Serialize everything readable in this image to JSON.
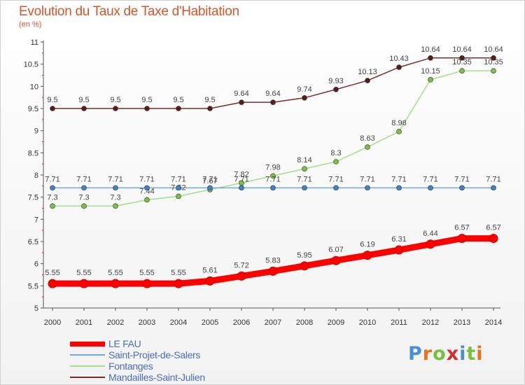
{
  "title": "Evolution du Taux de Taxe d'Habitation",
  "subtitle": "(en %)",
  "logo": {
    "text": "Proxiti",
    "letters": [
      "P",
      "r",
      "o",
      "x",
      "i",
      "t",
      "i"
    ]
  },
  "chart_data": {
    "type": "line",
    "x": [
      "2000",
      "2001",
      "2002",
      "2003",
      "2004",
      "2005",
      "2006",
      "2007",
      "2008",
      "2009",
      "2010",
      "2011",
      "2012",
      "2013",
      "2014"
    ],
    "ylim": [
      5,
      11
    ],
    "yticks": [
      "5",
      "5.5",
      "6",
      "6.5",
      "7",
      "7.5",
      "8",
      "8.5",
      "9",
      "9.5",
      "10",
      "10.5",
      "11"
    ],
    "ytick_values": [
      5,
      5.5,
      6,
      6.5,
      7,
      7.5,
      8,
      8.5,
      9,
      9.5,
      10,
      10.5,
      11
    ],
    "grid": false,
    "legend_position": "bottom-left",
    "series": [
      {
        "name": "LE FAU",
        "color": "#ff0000",
        "marker_color": "#ff0000",
        "values": [
          5.55,
          5.55,
          5.55,
          5.55,
          5.55,
          5.61,
          5.72,
          5.83,
          5.95,
          6.07,
          6.19,
          6.31,
          6.44,
          6.57,
          6.57
        ],
        "labels": [
          "5.55",
          "5.55",
          "5.55",
          "5.55",
          "5.55",
          "5.61",
          "5.72",
          "5.83",
          "5.95",
          "6.07",
          "6.19",
          "6.31",
          "6.44",
          "6.57",
          "6.57"
        ]
      },
      {
        "name": "Saint-Projet-de-Salers",
        "color": "#6fa8dc",
        "marker_color": "#3d85c6",
        "values": [
          7.71,
          7.71,
          7.71,
          7.71,
          7.71,
          7.71,
          7.71,
          7.71,
          7.71,
          7.71,
          7.71,
          7.71,
          7.71,
          7.71,
          7.71
        ],
        "labels": [
          "7.71",
          "7.71",
          "7.71",
          "7.71",
          "7.71",
          "7.71",
          "7.71",
          "7.71",
          "7.71",
          "7.71",
          "7.71",
          "7.71",
          "7.71",
          "7.71",
          "7.71"
        ]
      },
      {
        "name": "Fontanges",
        "color": "#a3e08a",
        "marker_color": "#7bc043",
        "values": [
          7.3,
          7.3,
          7.3,
          7.44,
          7.52,
          7.67,
          7.82,
          7.98,
          8.14,
          8.3,
          8.63,
          8.98,
          10.15,
          10.35,
          10.35
        ],
        "labels": [
          "7.3",
          "7.3",
          "7.3",
          "7.44",
          "7.52",
          "7.67",
          "7.82",
          "7.98",
          "8.14",
          "8.3",
          "8.63",
          "8.98",
          "10.15",
          "10.35",
          "10.35"
        ]
      },
      {
        "name": "Mandailles-Saint-Julien",
        "color": "#7b2c2c",
        "marker_color": "#5c1a1a",
        "values": [
          9.5,
          9.5,
          9.5,
          9.5,
          9.5,
          9.5,
          9.64,
          9.64,
          9.74,
          9.93,
          10.13,
          10.43,
          10.64,
          10.64,
          10.64
        ],
        "labels": [
          "9.5",
          "9.5",
          "9.5",
          "9.5",
          "9.5",
          "9.5",
          "9.64",
          "9.64",
          "9.74",
          "9.93",
          "10.13",
          "10.43",
          "10.64",
          "10.64",
          "10.64"
        ]
      }
    ]
  }
}
